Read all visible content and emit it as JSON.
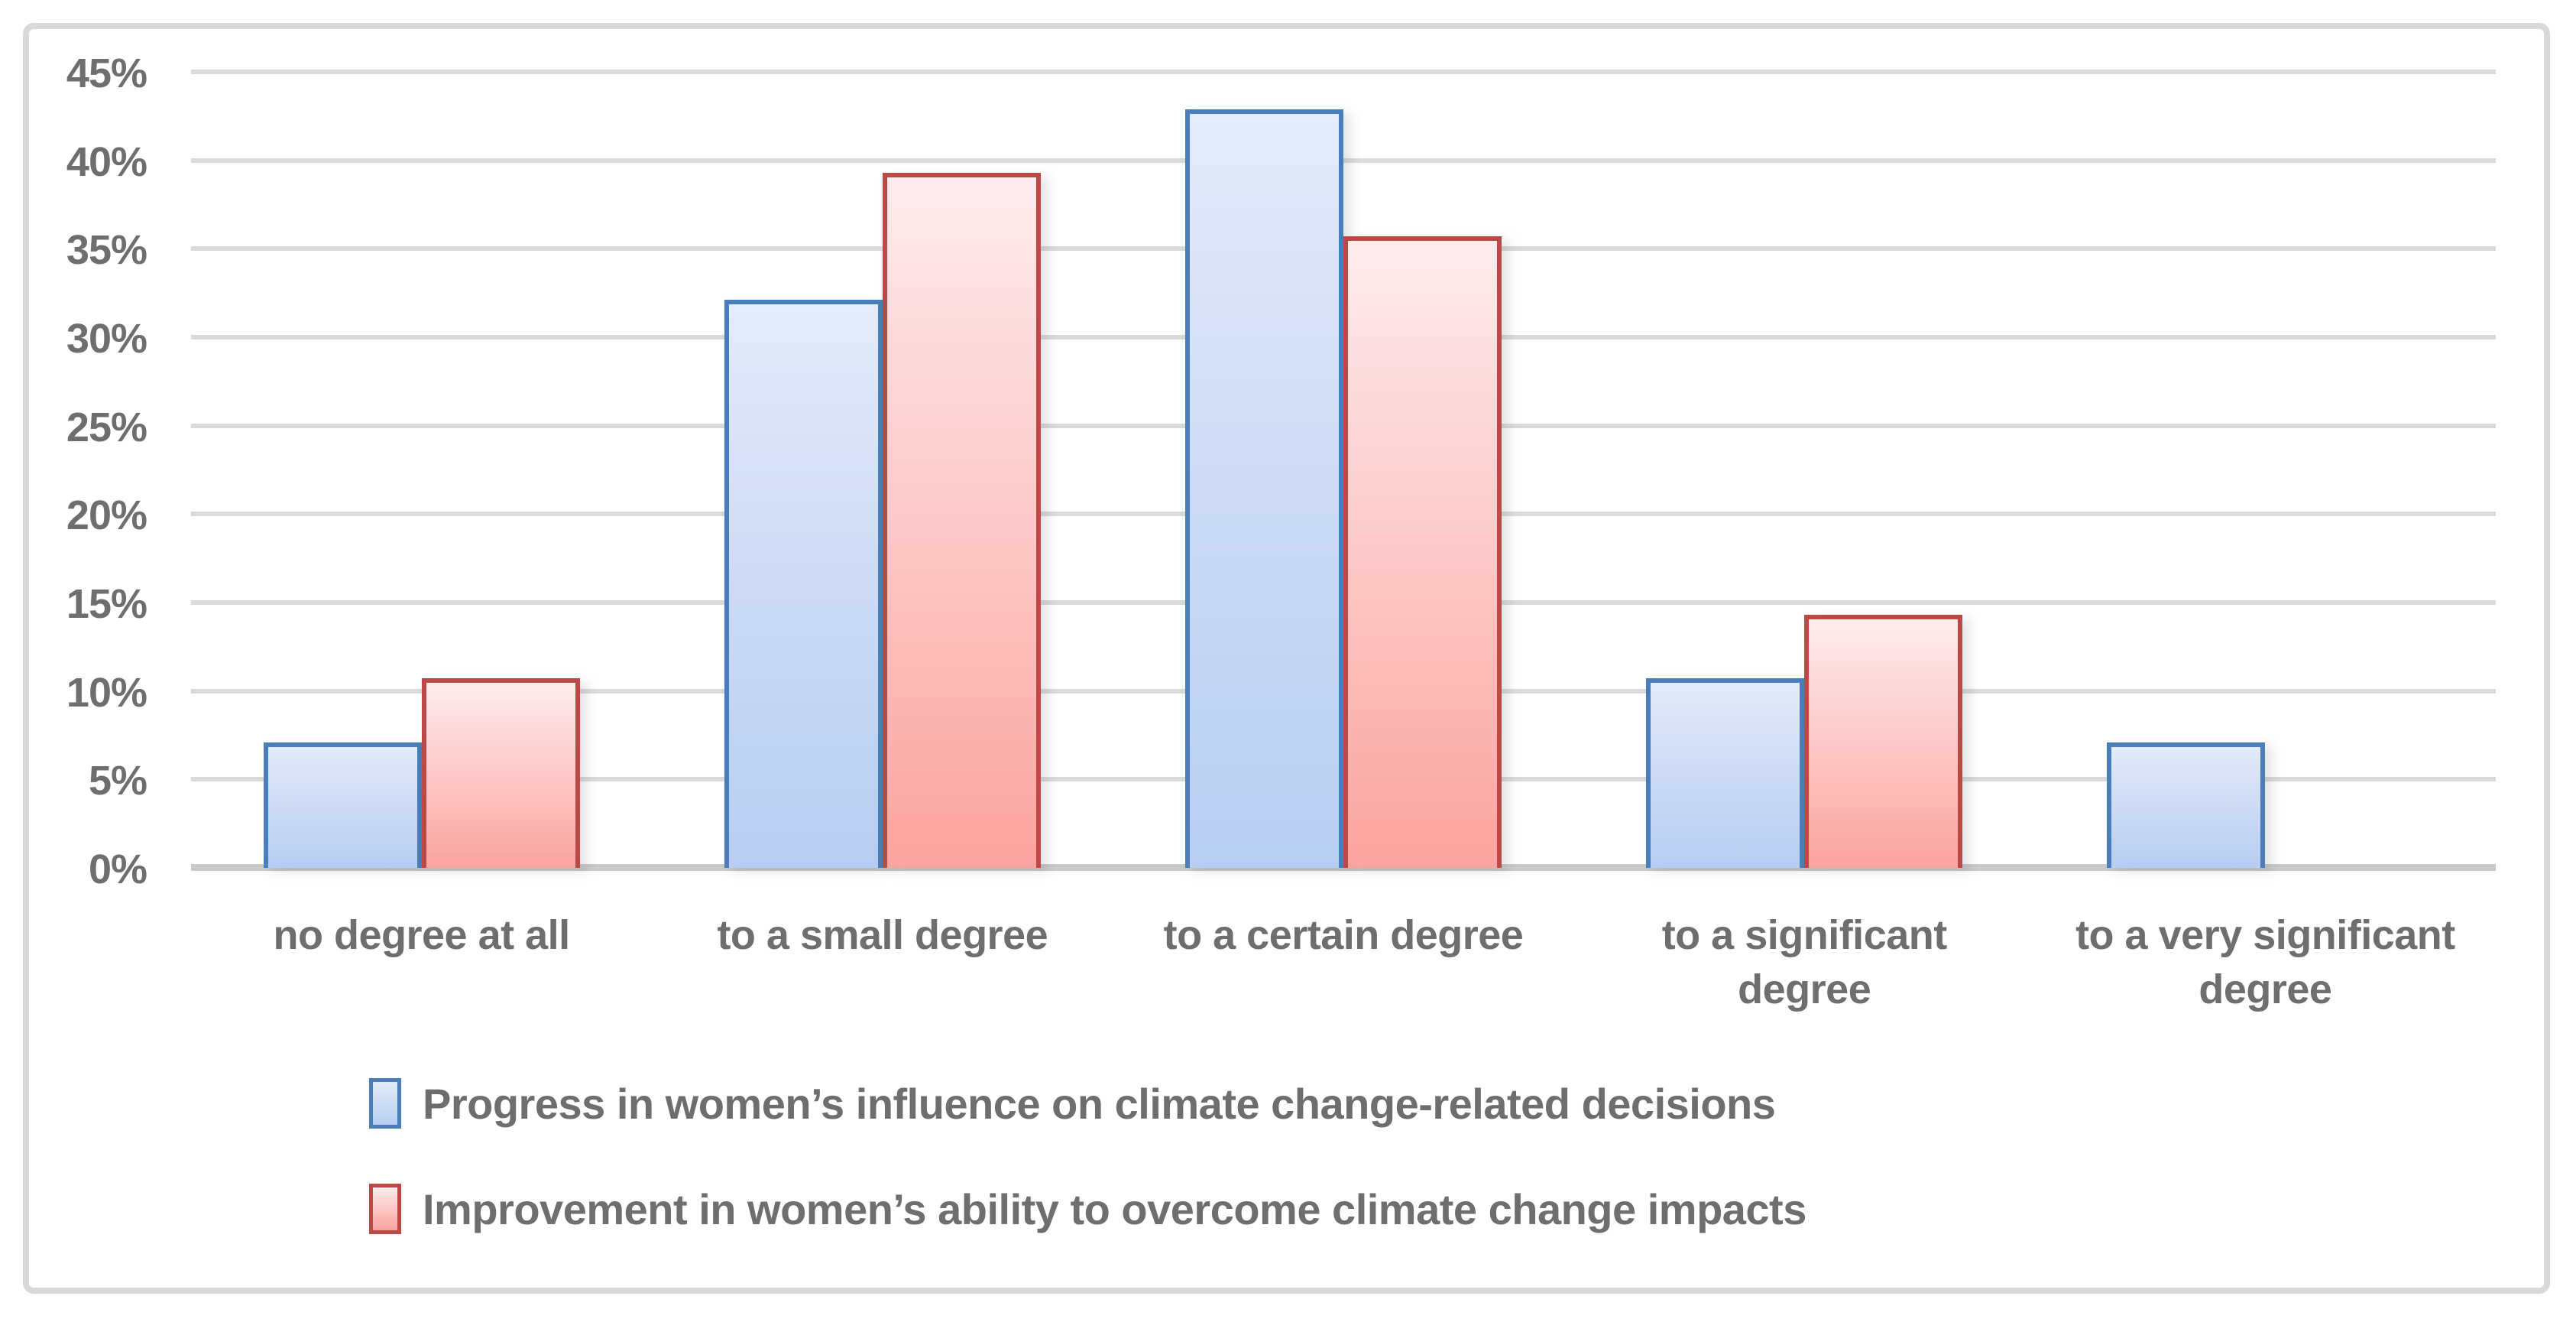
{
  "chart_data": {
    "type": "bar",
    "title": "",
    "xlabel": "",
    "ylabel": "",
    "categories": [
      "no degree at all",
      "to a small degree",
      "to a certain degree",
      "to a significant\ndegree",
      "to a very significant\ndegree"
    ],
    "series": [
      {
        "name": "Progress in women’s influence on climate change-related decisions",
        "key": "blue",
        "values": [
          7.1,
          32.1,
          42.9,
          10.7,
          7.1
        ],
        "border_color": "#4a7ebb",
        "fill_top": "#e4ecf9",
        "fill_bottom": "#b7cdf1"
      },
      {
        "name": "Improvement in women’s ability to overcome climate change impacts",
        "key": "red",
        "values": [
          10.7,
          39.3,
          35.7,
          14.3,
          0
        ],
        "border_color": "#bb4a47",
        "fill_top": "#fdecec",
        "fill_bottom": "#fba39f"
      }
    ],
    "ylim": [
      0,
      45
    ],
    "ytick_step": 5,
    "ytick_labels": [
      "0%",
      "5%",
      "10%",
      "15%",
      "20%",
      "25%",
      "30%",
      "35%",
      "40%",
      "45%"
    ],
    "grid": "horizontal-only",
    "gridline_color": "#dadada",
    "baseline_color": "#c9c9c9",
    "frame_color": "#d9d9d9",
    "text_color": "#6e6e6e",
    "legend_position": "bottom-left"
  }
}
